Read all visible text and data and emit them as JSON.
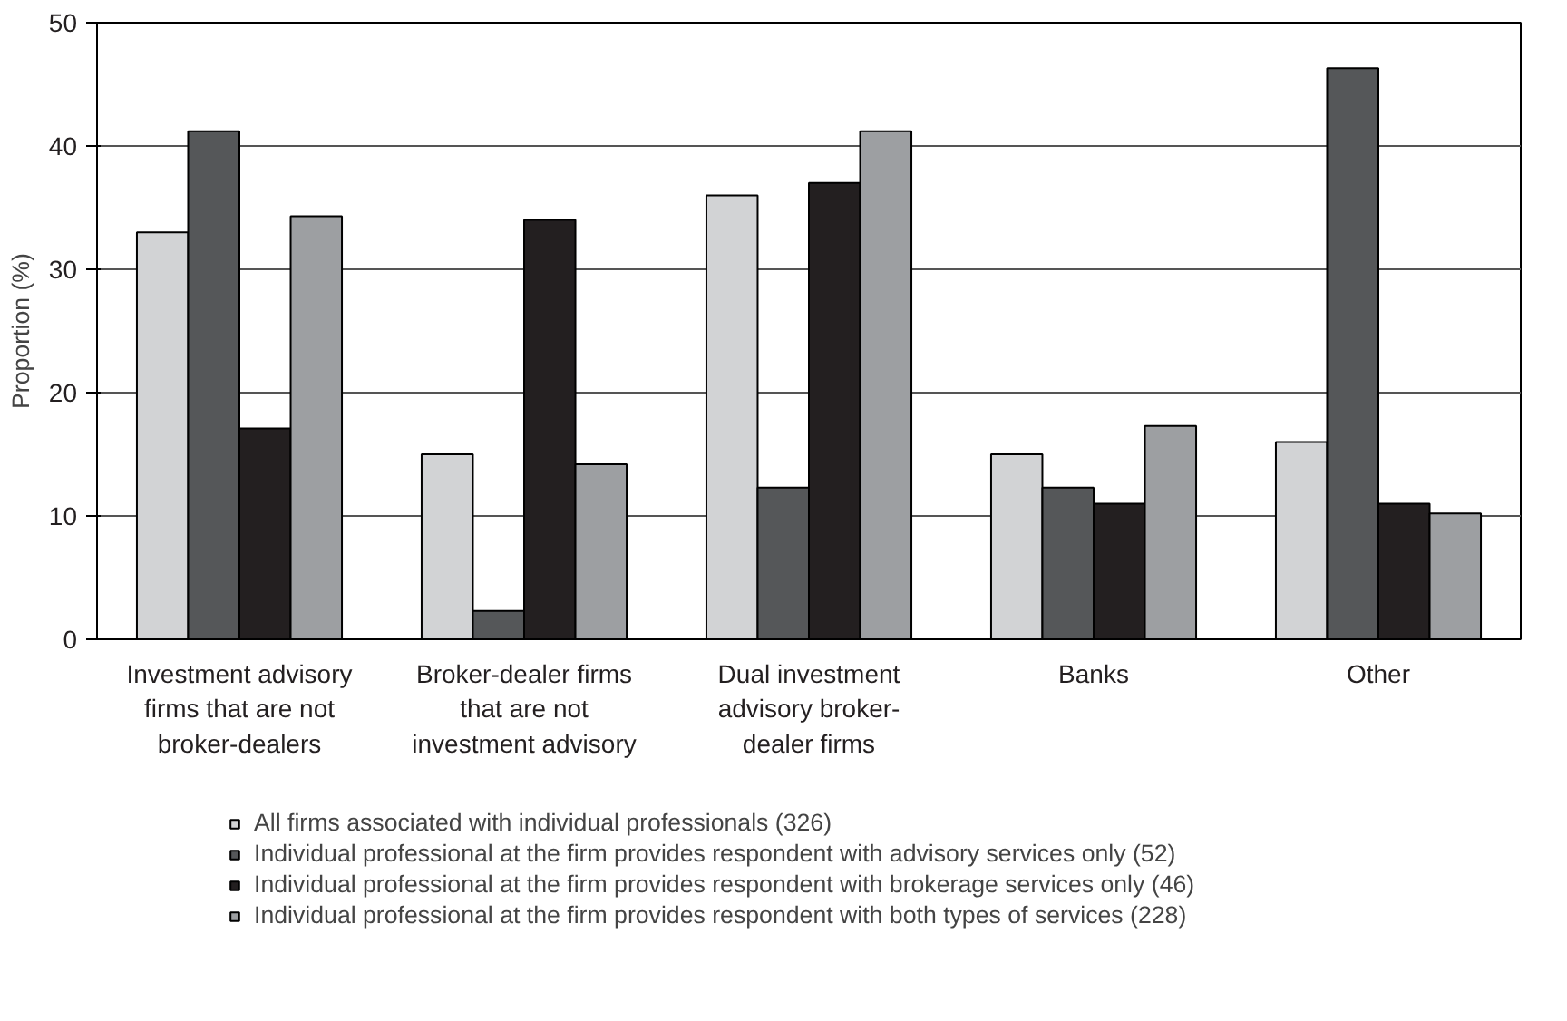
{
  "chart_data": {
    "type": "bar",
    "ylabel": "Proportion (%)",
    "categories": [
      "Investment advisory firms that are not broker-dealers",
      "Broker-dealer firms that are not investment advisory",
      "Dual investment advisory broker-dealer firms",
      "Banks",
      "Other"
    ],
    "series": [
      {
        "name": "All firms associated with individual professionals (326)",
        "color": "#d2d3d5",
        "values": [
          33,
          15,
          36,
          15,
          16
        ]
      },
      {
        "name": "Individual professional at the firm provides respondent with advisory services only (52)",
        "color": "#555759",
        "values": [
          41.2,
          2.3,
          12.3,
          12.3,
          46.3
        ]
      },
      {
        "name": "Individual professional at the firm provides respondent with brokerage services only (46)",
        "color": "#231f20",
        "values": [
          17.1,
          34,
          37,
          11,
          11
        ]
      },
      {
        "name": "Individual professional at the firm provides respondent with both types of services (228)",
        "color": "#9d9fa2",
        "values": [
          34.3,
          14.2,
          41.2,
          17.3,
          10.2
        ]
      }
    ],
    "ylim": [
      0,
      50
    ],
    "yticks": [
      0,
      10,
      20,
      30,
      40,
      50
    ],
    "grid": "y",
    "legend": "bottom"
  }
}
